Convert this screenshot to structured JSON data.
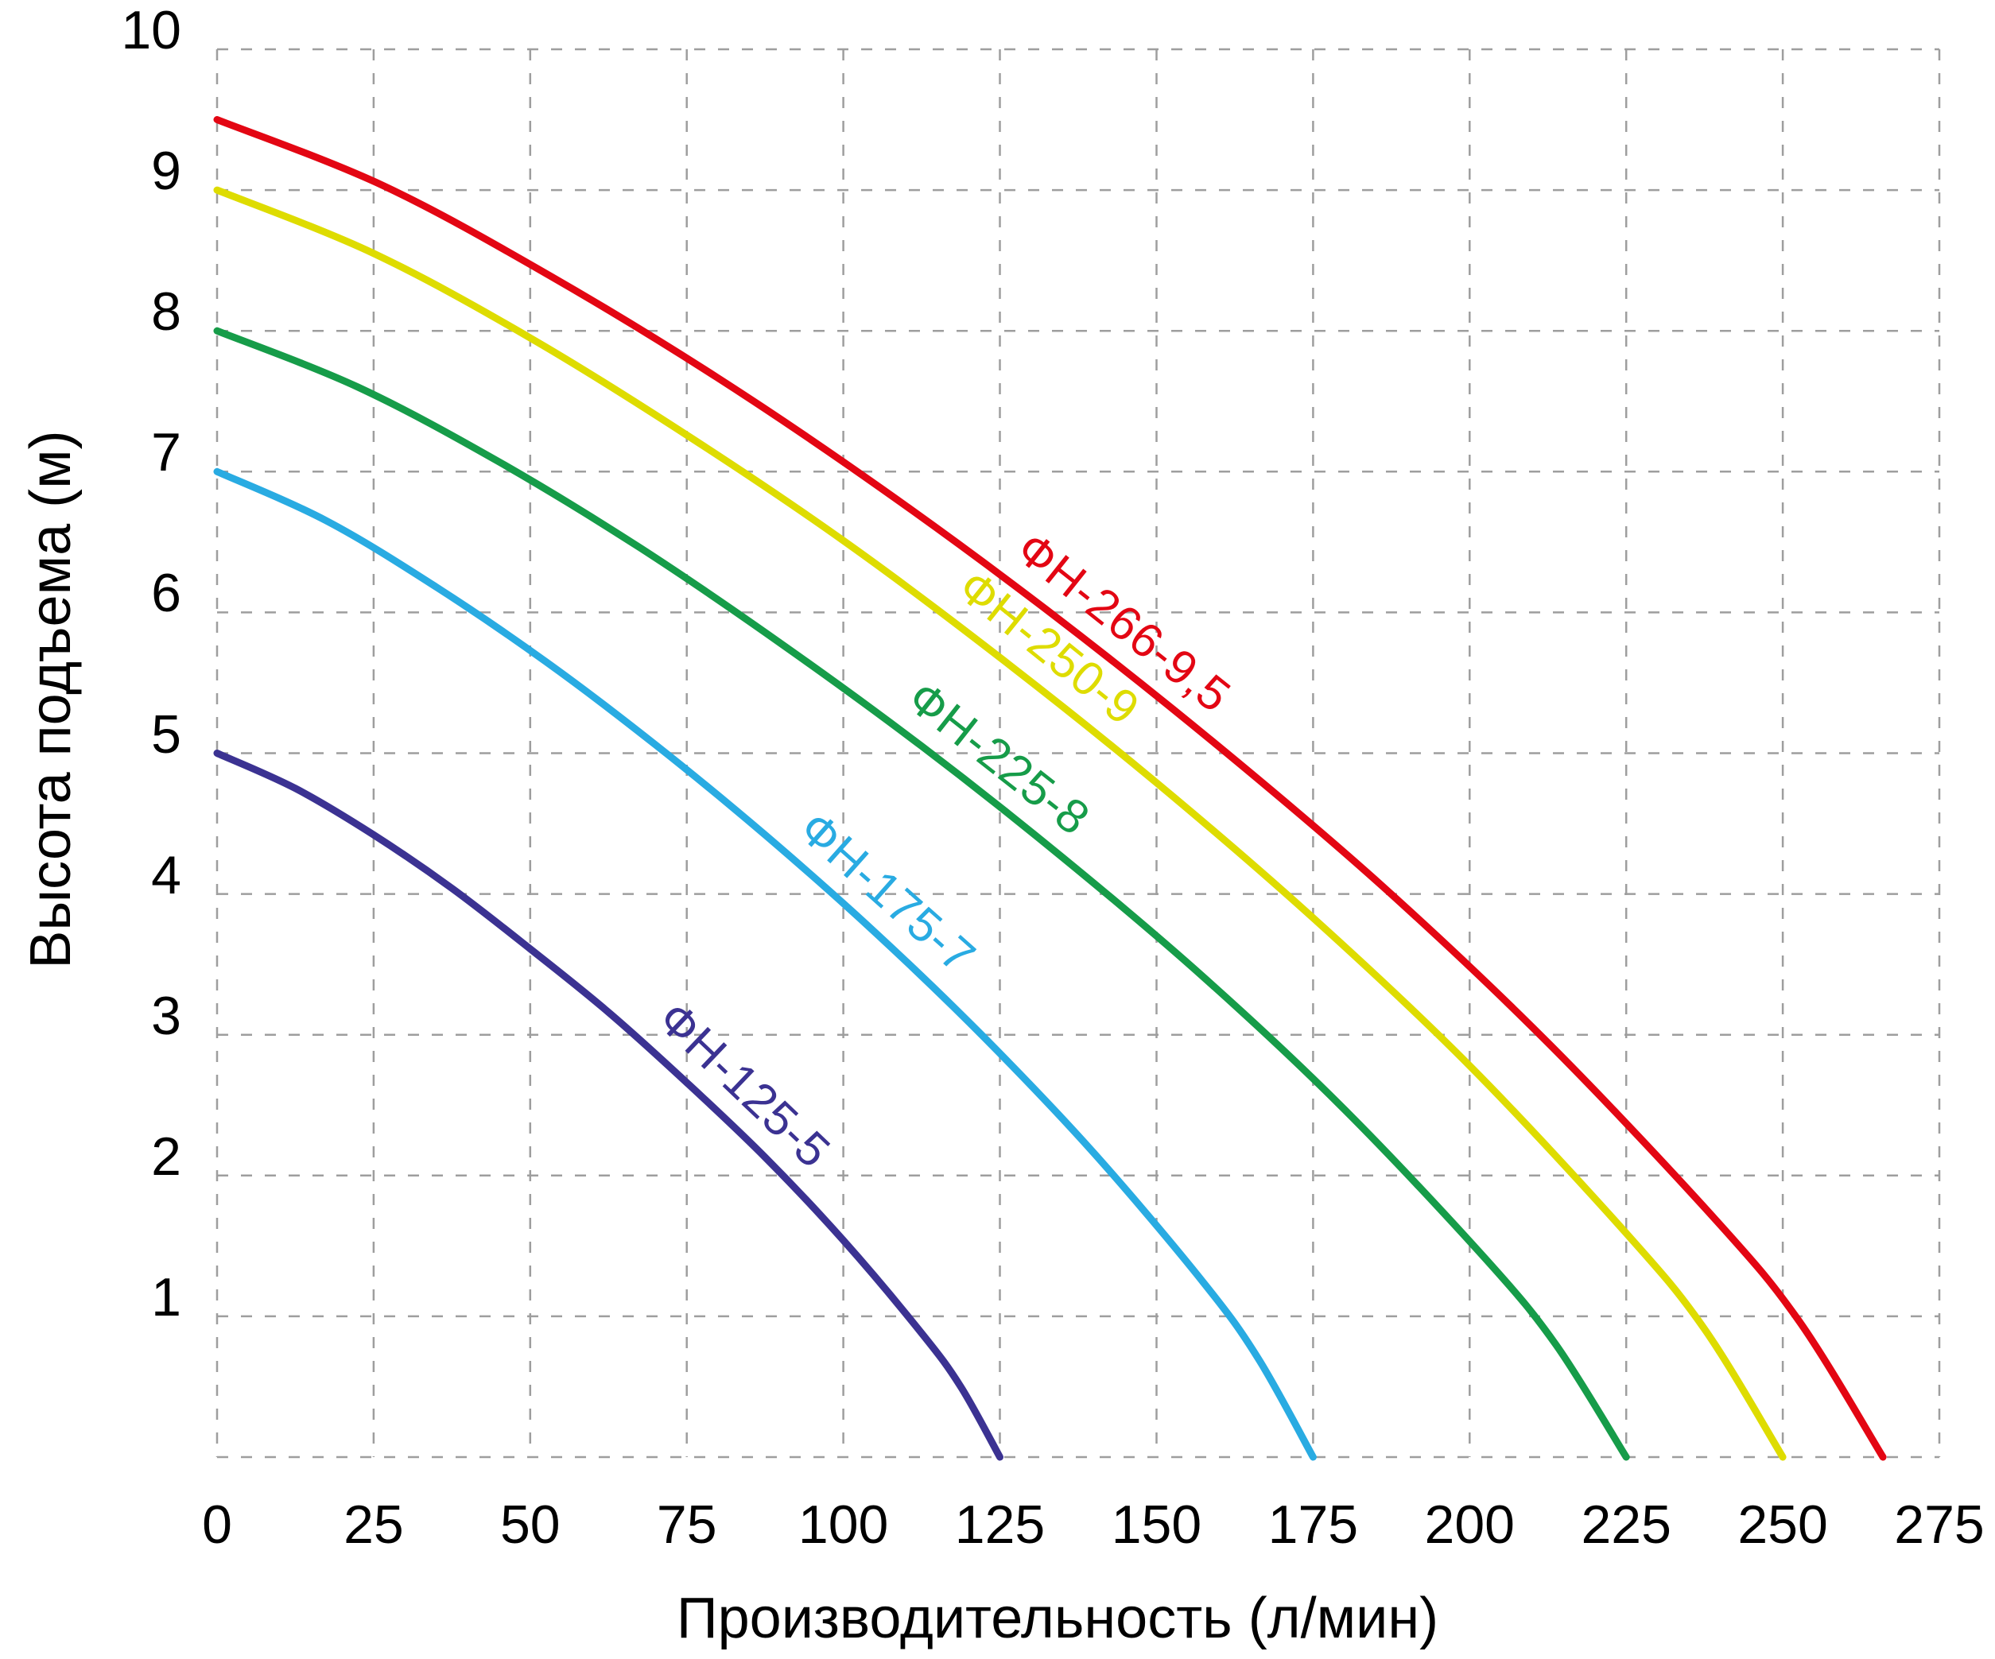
{
  "chart_data": {
    "type": "line",
    "title": "",
    "xlabel": "Производительность (л/мин)",
    "ylabel": "Высота подъема (м)",
    "xlim": [
      0,
      275
    ],
    "ylim": [
      0,
      10
    ],
    "x_ticks": [
      0,
      25,
      50,
      75,
      100,
      125,
      150,
      175,
      200,
      225,
      250,
      275
    ],
    "y_ticks": [
      1,
      2,
      3,
      4,
      5,
      6,
      7,
      8,
      9,
      10
    ],
    "x_gridlines": [
      0,
      25,
      50,
      75,
      100,
      125,
      150,
      175,
      200,
      225,
      250,
      275
    ],
    "y_gridlines": [
      0,
      1,
      2,
      3,
      4,
      5,
      6,
      7,
      8,
      9,
      10
    ],
    "grid": {
      "style": "dashed",
      "color": "#9e9e9e"
    },
    "legend_position": "labels-along-curves",
    "series": [
      {
        "name": "ФН-266-9,5",
        "color": "#e30613",
        "rated_head_m": 9.5,
        "max_flow_l_min": 266,
        "label_at_flow": 141,
        "points": [
          [
            0,
            9.5
          ],
          [
            26.6,
            9.03
          ],
          [
            53.2,
            8.39
          ],
          [
            79.8,
            7.67
          ],
          [
            106.4,
            6.87
          ],
          [
            133,
            6.0
          ],
          [
            159.6,
            5.06
          ],
          [
            186.2,
            4.05
          ],
          [
            212.8,
            2.93
          ],
          [
            239.4,
            1.68
          ],
          [
            252.7,
            0.96
          ],
          [
            266,
            0
          ]
        ]
      },
      {
        "name": "ФН-250-9",
        "color": "#dedc00",
        "rated_head_m": 9,
        "max_flow_l_min": 250,
        "label_at_flow": 129,
        "points": [
          [
            0,
            9.0
          ],
          [
            25,
            8.55
          ],
          [
            50,
            7.95
          ],
          [
            75,
            7.26
          ],
          [
            100,
            6.51
          ],
          [
            125,
            5.68
          ],
          [
            150,
            4.79
          ],
          [
            175,
            3.83
          ],
          [
            200,
            2.78
          ],
          [
            225,
            1.59
          ],
          [
            237.5,
            0.91
          ],
          [
            250,
            0
          ]
        ]
      },
      {
        "name": "ФН-225-8",
        "color": "#169c49",
        "rated_head_m": 8,
        "max_flow_l_min": 225,
        "label_at_flow": 121,
        "points": [
          [
            0,
            8.0
          ],
          [
            22.5,
            7.6
          ],
          [
            45,
            7.07
          ],
          [
            67.5,
            6.46
          ],
          [
            90,
            5.78
          ],
          [
            112.5,
            5.05
          ],
          [
            135,
            4.26
          ],
          [
            157.5,
            3.41
          ],
          [
            180,
            2.47
          ],
          [
            202.5,
            1.41
          ],
          [
            213.75,
            0.8
          ],
          [
            225,
            0
          ]
        ]
      },
      {
        "name": "ФН-175-7",
        "color": "#29abe2",
        "rated_head_m": 7,
        "max_flow_l_min": 175,
        "label_at_flow": 103,
        "points": [
          [
            0,
            7.0
          ],
          [
            17.5,
            6.65
          ],
          [
            35,
            6.18
          ],
          [
            52.5,
            5.65
          ],
          [
            70,
            5.06
          ],
          [
            87.5,
            4.42
          ],
          [
            105,
            3.73
          ],
          [
            122.5,
            2.98
          ],
          [
            140,
            2.16
          ],
          [
            157.5,
            1.24
          ],
          [
            166.25,
            0.7
          ],
          [
            175,
            0
          ]
        ]
      },
      {
        "name": "ФН-125-5",
        "color": "#3b3292",
        "rated_head_m": 5,
        "max_flow_l_min": 125,
        "label_at_flow": 80,
        "points": [
          [
            0,
            5.0
          ],
          [
            12.5,
            4.75
          ],
          [
            25,
            4.42
          ],
          [
            37.5,
            4.04
          ],
          [
            50,
            3.61
          ],
          [
            62.5,
            3.16
          ],
          [
            75,
            2.66
          ],
          [
            87.5,
            2.13
          ],
          [
            100,
            1.54
          ],
          [
            112.5,
            0.88
          ],
          [
            118.75,
            0.5
          ],
          [
            125,
            0
          ]
        ]
      }
    ]
  }
}
